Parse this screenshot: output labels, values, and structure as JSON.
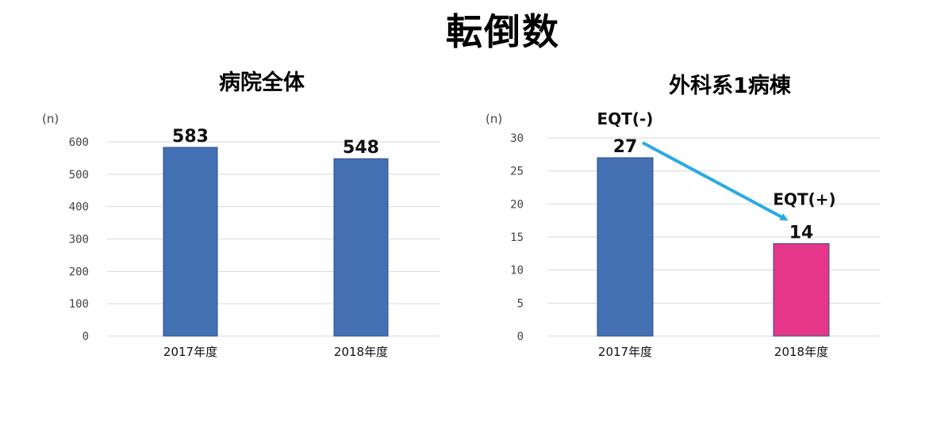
{
  "title": "転倒数",
  "colors": {
    "blue": "#4470b4",
    "pink": "#e5368a",
    "arrow": "#29abe2",
    "grid": "#d9d9d9"
  },
  "chart_data": [
    {
      "type": "bar",
      "title": "病院全体",
      "unit": "(n)",
      "categories": [
        "2017年度",
        "2018年度"
      ],
      "values": [
        583,
        548
      ],
      "value_labels": [
        "583",
        "548"
      ],
      "yticks": [
        "0",
        "100",
        "200",
        "300",
        "400",
        "500",
        "600"
      ],
      "ylim": [
        0,
        600
      ],
      "grid": true,
      "bar_colors": [
        "#4470b4",
        "#4470b4"
      ]
    },
    {
      "type": "bar",
      "title": "外科系1病棟",
      "unit": "(n)",
      "categories": [
        "2017年度",
        "2018年度"
      ],
      "values": [
        27,
        14
      ],
      "value_labels": [
        "27",
        "14"
      ],
      "yticks": [
        "0",
        "5",
        "10",
        "15",
        "20",
        "25",
        "30"
      ],
      "ylim": [
        0,
        30
      ],
      "grid": true,
      "bar_colors": [
        "#4470b4",
        "#e5368a"
      ],
      "annotations": [
        "EQT(-)",
        "EQT(+)"
      ]
    }
  ]
}
